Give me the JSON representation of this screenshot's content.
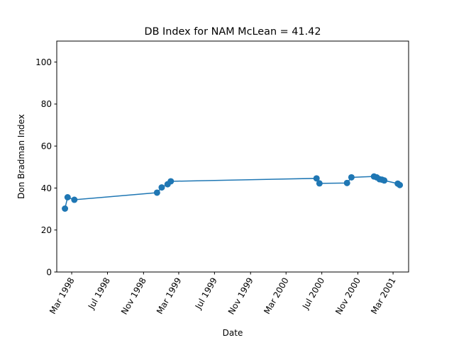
{
  "chart_data": {
    "type": "line",
    "title": "DB Index for NAM McLean = 41.42",
    "xlabel": "Date",
    "ylabel": "Don Bradman Index",
    "ylim": [
      0,
      110
    ],
    "xlim": [
      "1998-01-09",
      "2001-04-23"
    ],
    "yticks": [
      0,
      20,
      40,
      60,
      80,
      100
    ],
    "xticks": [
      {
        "date": "1998-03-01",
        "label": "Mar 1998"
      },
      {
        "date": "1998-07-01",
        "label": "Jul 1998"
      },
      {
        "date": "1998-11-01",
        "label": "Nov 1998"
      },
      {
        "date": "1999-03-01",
        "label": "Mar 1999"
      },
      {
        "date": "1999-07-01",
        "label": "Jul 1999"
      },
      {
        "date": "1999-11-01",
        "label": "Nov 1999"
      },
      {
        "date": "2000-03-01",
        "label": "Mar 2000"
      },
      {
        "date": "2000-07-01",
        "label": "Jul 2000"
      },
      {
        "date": "2000-11-01",
        "label": "Nov 2000"
      },
      {
        "date": "2001-03-01",
        "label": "Mar 2001"
      }
    ],
    "grid": false,
    "series": [
      {
        "color": "#1f77b4",
        "points": [
          {
            "x": "1998-02-06",
            "y": 30.2
          },
          {
            "x": "1998-02-15",
            "y": 35.6
          },
          {
            "x": "1998-03-10",
            "y": 34.4
          },
          {
            "x": "1998-12-17",
            "y": 37.8
          },
          {
            "x": "1999-01-02",
            "y": 40.3
          },
          {
            "x": "1999-01-22",
            "y": 41.8
          },
          {
            "x": "1999-02-02",
            "y": 43.2
          },
          {
            "x": "2000-06-13",
            "y": 44.6
          },
          {
            "x": "2000-06-23",
            "y": 42.2
          },
          {
            "x": "2000-09-25",
            "y": 42.4
          },
          {
            "x": "2000-10-10",
            "y": 45.1
          },
          {
            "x": "2000-12-26",
            "y": 45.5
          },
          {
            "x": "2001-01-04",
            "y": 45.1
          },
          {
            "x": "2001-01-14",
            "y": 44.2
          },
          {
            "x": "2001-01-22",
            "y": 44.0
          },
          {
            "x": "2001-01-30",
            "y": 43.6
          },
          {
            "x": "2001-03-17",
            "y": 42.1
          },
          {
            "x": "2001-03-24",
            "y": 41.42
          }
        ]
      }
    ]
  }
}
